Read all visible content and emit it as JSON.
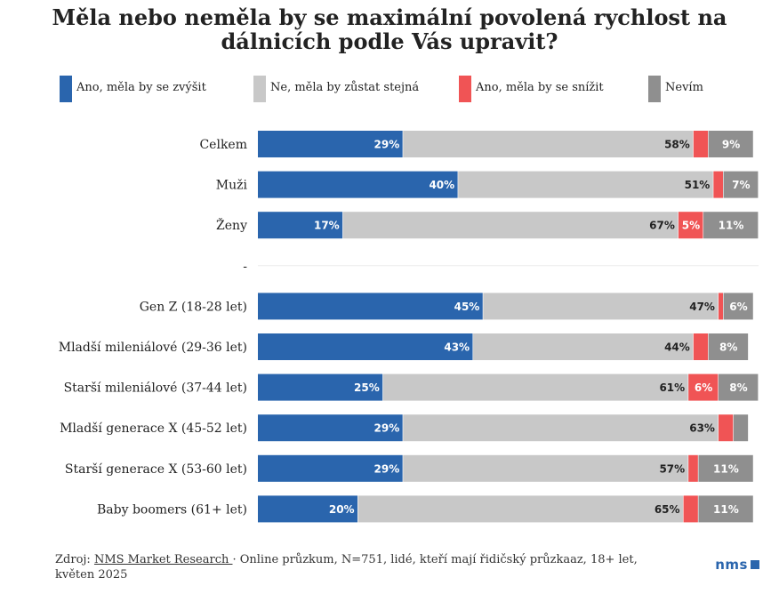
{
  "chart_data": {
    "type": "bar",
    "orientation": "horizontal",
    "stacked": true,
    "normalized": true,
    "title": "Měla nebo neměla by se maximální povolená rychlost na dálnicích podle Vás upravit?",
    "legend_position": "top",
    "grid": false,
    "xlim": [
      0,
      100
    ],
    "categories": [
      "Celkem",
      "Muži",
      "Ženy",
      "-",
      "Gen Z (18-28 let)",
      "Mladší mileniálové (29-36 let)",
      "Starší mileniálové (37-44 let)",
      "Mladší generace X (45-52 let)",
      "Starší generace X (53-60 let)",
      "Baby boomers (61+ let)"
    ],
    "series": [
      {
        "name": "Ano, měla by se zvýšit",
        "color": "#2a65ad",
        "values": [
          29,
          40,
          17,
          null,
          45,
          43,
          25,
          29,
          29,
          20
        ],
        "labels": [
          "29%",
          "40%",
          "17%",
          "",
          "45%",
          "43%",
          "25%",
          "29%",
          "29%",
          "20%"
        ]
      },
      {
        "name": "Ne, měla by zůstat stejná",
        "color": "#c8c8c8",
        "values": [
          58,
          51,
          67,
          null,
          47,
          44,
          61,
          63,
          57,
          65
        ],
        "labels": [
          "58%",
          "51%",
          "67%",
          "",
          "47%",
          "44%",
          "61%",
          "63%",
          "57%",
          "65%"
        ]
      },
      {
        "name": "Ano, měla by se snížit",
        "color": "#f05455",
        "values": [
          3,
          2,
          5,
          null,
          1,
          3,
          6,
          3,
          2,
          3
        ],
        "labels": [
          "",
          "",
          "5%",
          "",
          "",
          "",
          "6%",
          "",
          "",
          ""
        ]
      },
      {
        "name": "Nevím",
        "color": "#8f8f8f",
        "values": [
          9,
          7,
          11,
          null,
          6,
          8,
          8,
          3,
          11,
          11
        ],
        "labels": [
          "9%",
          "7%",
          "11%",
          "",
          "6%",
          "8%",
          "8%",
          "",
          "11%",
          "11%"
        ]
      }
    ]
  },
  "footer": {
    "source_prefix": "Zdroj: ",
    "source_link": "NMS Market Research ",
    "source_suffix": "· Online průzkum, N=751, lidé, kteří mají řidičský průzkaaz, 18+ let, květen 2025"
  },
  "logo": {
    "text": "nms"
  }
}
